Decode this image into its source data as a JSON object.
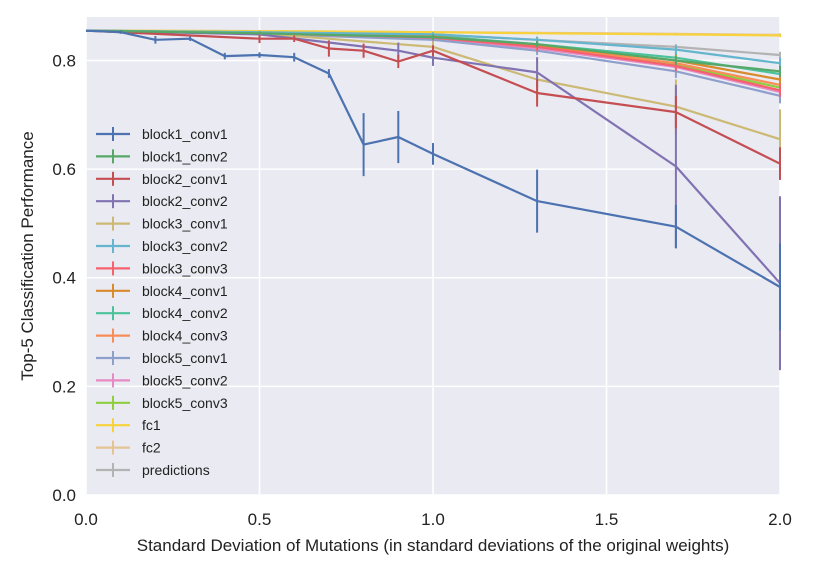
{
  "chart_data": {
    "type": "line",
    "title": "",
    "xlabel": "Standard Deviation of Mutations (in standard deviations of the original weights)",
    "ylabel": "Top-5 Classification Performance",
    "xlim": [
      0.0,
      2.0
    ],
    "ylim": [
      0.0,
      0.88
    ],
    "xticks": [
      0.0,
      0.5,
      1.0,
      1.5,
      2.0
    ],
    "xtick_labels": [
      "0.0",
      "0.5",
      "1.0",
      "1.5",
      "2.0"
    ],
    "yticks": [
      0.0,
      0.2,
      0.4,
      0.6,
      0.8
    ],
    "ytick_labels": [
      "0.0",
      "0.2",
      "0.4",
      "0.6",
      "0.8"
    ],
    "grid": true,
    "legend_position": "center-left",
    "series": [
      {
        "name": "block1_conv1",
        "color": "#4c72b0",
        "x": [
          0.0,
          0.1,
          0.2,
          0.3,
          0.4,
          0.5,
          0.6,
          0.7,
          0.8,
          0.9,
          1.0,
          1.3,
          1.7,
          2.0
        ],
        "y": [
          0.855,
          0.852,
          0.838,
          0.84,
          0.808,
          0.81,
          0.806,
          0.776,
          0.645,
          0.659,
          0.628,
          0.541,
          0.494,
          0.383
        ],
        "err": [
          0.0,
          0.003,
          0.007,
          0.004,
          0.006,
          0.005,
          0.008,
          0.008,
          0.058,
          0.048,
          0.02,
          0.058,
          0.04,
          0.08
        ]
      },
      {
        "name": "block1_conv2",
        "color": "#55a868",
        "x": [
          0.0,
          0.5,
          1.0,
          1.3,
          1.7,
          2.0
        ],
        "y": [
          0.855,
          0.85,
          0.843,
          0.83,
          0.8,
          0.78
        ],
        "err": [
          0.0,
          0.003,
          0.005,
          0.006,
          0.008,
          0.01
        ]
      },
      {
        "name": "block2_conv1",
        "color": "#c44e52",
        "x": [
          0.0,
          0.5,
          0.6,
          0.7,
          0.8,
          0.9,
          1.0,
          1.3,
          1.7,
          2.0
        ],
        "y": [
          0.855,
          0.84,
          0.84,
          0.822,
          0.818,
          0.798,
          0.818,
          0.74,
          0.705,
          0.61
        ],
        "err": [
          0.0,
          0.008,
          0.006,
          0.015,
          0.013,
          0.012,
          0.01,
          0.025,
          0.03,
          0.03
        ]
      },
      {
        "name": "block2_conv2",
        "color": "#8172b2",
        "x": [
          0.0,
          0.5,
          0.9,
          1.0,
          1.3,
          1.7,
          2.0
        ],
        "y": [
          0.855,
          0.848,
          0.818,
          0.805,
          0.778,
          0.605,
          0.39
        ],
        "err": [
          0.0,
          0.005,
          0.015,
          0.015,
          0.028,
          0.15,
          0.16
        ]
      },
      {
        "name": "block3_conv1",
        "color": "#ccb974",
        "x": [
          0.0,
          0.5,
          1.0,
          1.3,
          1.7,
          2.0
        ],
        "y": [
          0.855,
          0.85,
          0.825,
          0.765,
          0.715,
          0.655
        ],
        "err": [
          0.0,
          0.004,
          0.01,
          0.04,
          0.05,
          0.055
        ]
      },
      {
        "name": "block3_conv2",
        "color": "#64b5cd",
        "x": [
          0.0,
          0.5,
          1.0,
          1.3,
          1.7,
          2.0
        ],
        "y": [
          0.855,
          0.852,
          0.848,
          0.838,
          0.82,
          0.795
        ],
        "err": [
          0.0,
          0.003,
          0.004,
          0.006,
          0.008,
          0.01
        ]
      },
      {
        "name": "block3_conv3",
        "color": "#f5626e",
        "x": [
          0.0,
          0.5,
          1.0,
          1.3,
          1.7,
          2.0
        ],
        "y": [
          0.855,
          0.85,
          0.842,
          0.825,
          0.79,
          0.745
        ],
        "err": [
          0.0,
          0.003,
          0.005,
          0.008,
          0.01,
          0.012
        ]
      },
      {
        "name": "block4_conv1",
        "color": "#d98a2c",
        "x": [
          0.0,
          0.5,
          1.0,
          1.3,
          1.7,
          2.0
        ],
        "y": [
          0.855,
          0.851,
          0.844,
          0.828,
          0.8,
          0.765
        ],
        "err": [
          0.0,
          0.003,
          0.005,
          0.007,
          0.01,
          0.012
        ]
      },
      {
        "name": "block4_conv2",
        "color": "#4cc29a",
        "x": [
          0.0,
          0.5,
          1.0,
          1.3,
          1.7,
          2.0
        ],
        "y": [
          0.855,
          0.851,
          0.845,
          0.83,
          0.805,
          0.775
        ],
        "err": [
          0.0,
          0.003,
          0.005,
          0.007,
          0.01,
          0.012
        ]
      },
      {
        "name": "block4_conv3",
        "color": "#fa8c57",
        "x": [
          0.0,
          0.5,
          1.0,
          1.3,
          1.7,
          2.0
        ],
        "y": [
          0.855,
          0.85,
          0.843,
          0.826,
          0.795,
          0.755
        ],
        "err": [
          0.0,
          0.003,
          0.005,
          0.007,
          0.01,
          0.012
        ]
      },
      {
        "name": "block5_conv1",
        "color": "#8da0cb",
        "x": [
          0.0,
          0.5,
          1.0,
          1.3,
          1.7,
          2.0
        ],
        "y": [
          0.855,
          0.849,
          0.838,
          0.818,
          0.78,
          0.735
        ],
        "err": [
          0.0,
          0.003,
          0.006,
          0.008,
          0.012,
          0.014
        ]
      },
      {
        "name": "block5_conv2",
        "color": "#e78ac3",
        "x": [
          0.0,
          0.5,
          1.0,
          1.3,
          1.7,
          2.0
        ],
        "y": [
          0.855,
          0.85,
          0.841,
          0.822,
          0.788,
          0.742
        ],
        "err": [
          0.0,
          0.003,
          0.006,
          0.008,
          0.012,
          0.014
        ]
      },
      {
        "name": "block5_conv3",
        "color": "#8fce3f",
        "x": [
          0.0,
          0.5,
          1.0,
          1.3,
          1.7,
          2.0
        ],
        "y": [
          0.855,
          0.851,
          0.842,
          0.824,
          0.792,
          0.75
        ],
        "err": [
          0.0,
          0.003,
          0.006,
          0.008,
          0.012,
          0.014
        ]
      },
      {
        "name": "fc1",
        "color": "#f7d23a",
        "x": [
          0.0,
          0.5,
          1.0,
          1.3,
          1.7,
          2.0
        ],
        "y": [
          0.855,
          0.854,
          0.852,
          0.85,
          0.848,
          0.846
        ],
        "err": [
          0.0,
          0.002,
          0.002,
          0.002,
          0.002,
          0.003
        ]
      },
      {
        "name": "fc2",
        "color": "#e5c494",
        "x": [
          0.0,
          0.5,
          1.0,
          1.3,
          1.7,
          2.0
        ],
        "y": [
          0.855,
          0.854,
          0.852,
          0.851,
          0.849,
          0.847
        ],
        "err": [
          0.0,
          0.002,
          0.002,
          0.002,
          0.002,
          0.003
        ]
      },
      {
        "name": "predictions",
        "color": "#b3b3b3",
        "x": [
          0.0,
          0.5,
          1.0,
          1.3,
          1.7,
          2.0
        ],
        "y": [
          0.855,
          0.853,
          0.848,
          0.838,
          0.825,
          0.81
        ],
        "err": [
          0.0,
          0.002,
          0.003,
          0.004,
          0.005,
          0.006
        ]
      }
    ]
  }
}
